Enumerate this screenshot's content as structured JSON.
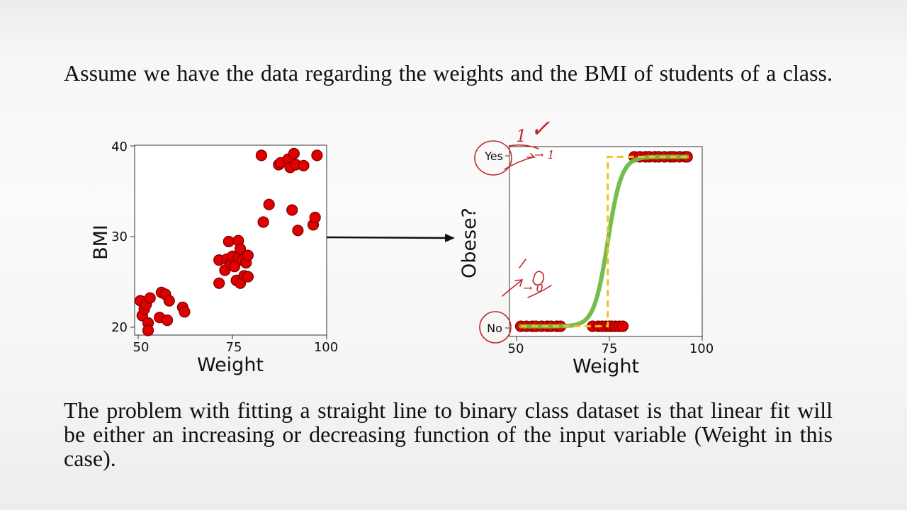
{
  "slide": {
    "intro": "Assume we have the data regarding the weights and the BMI of students of a class.",
    "outro": "The problem with fitting a straight line to binary class dataset is that linear fit will be either an increasing or decreasing function of the input variable (Weight in this case).",
    "handwriting": [
      "1",
      "✓",
      "→ 1",
      "→ 0"
    ]
  },
  "chart_data": [
    {
      "type": "scatter",
      "title": "",
      "xlabel": "Weight",
      "ylabel": "BMI",
      "xlim": [
        49,
        99
      ],
      "ylim": [
        19.5,
        40
      ],
      "xticks": [
        "50",
        "75",
        "100"
      ],
      "yticks": [
        "20",
        "30",
        "40"
      ],
      "color": "#e00000",
      "points": [
        [
          50.5,
          23.2
        ],
        [
          51,
          21.6
        ],
        [
          51.5,
          22.3
        ],
        [
          52.5,
          20.8
        ],
        [
          52,
          22.8
        ],
        [
          53,
          23.5
        ],
        [
          52.5,
          20
        ],
        [
          55.5,
          21.4
        ],
        [
          56,
          24.1
        ],
        [
          57,
          23.9
        ],
        [
          57.5,
          21.1
        ],
        [
          58,
          23.2
        ],
        [
          61.5,
          22.5
        ],
        [
          62,
          22
        ],
        [
          71,
          25.1
        ],
        [
          71,
          27.6
        ],
        [
          72.5,
          26.5
        ],
        [
          73,
          27.7
        ],
        [
          73.5,
          29.6
        ],
        [
          74,
          27.2
        ],
        [
          74.5,
          28
        ],
        [
          75,
          26.9
        ],
        [
          75.5,
          25.4
        ],
        [
          76,
          27.9
        ],
        [
          76,
          29.7
        ],
        [
          76.5,
          25.1
        ],
        [
          76.5,
          28.8
        ],
        [
          77,
          27.6
        ],
        [
          77.5,
          25.9
        ],
        [
          78,
          27.3
        ],
        [
          78.5,
          28.1
        ],
        [
          78.5,
          25.8
        ],
        [
          82,
          38.9
        ],
        [
          82.5,
          31.7
        ],
        [
          84,
          33.6
        ],
        [
          86.5,
          37.9
        ],
        [
          87,
          38.1
        ],
        [
          89,
          38.5
        ],
        [
          89.5,
          37.6
        ],
        [
          90,
          33
        ],
        [
          90.5,
          39.1
        ],
        [
          91,
          37.9
        ],
        [
          91.5,
          30.8
        ],
        [
          93,
          37.8
        ],
        [
          95.5,
          31.4
        ],
        [
          96,
          32.2
        ],
        [
          96.5,
          38.9
        ]
      ]
    },
    {
      "type": "scatter",
      "title": "",
      "xlabel": "Weight",
      "ylabel": "Obese?",
      "xlim": [
        49,
        100
      ],
      "ylim": [
        -0.06,
        1.06
      ],
      "xticks": [
        "50",
        "75",
        "100"
      ],
      "ycategories": [
        "No",
        "Yes"
      ],
      "series": [
        {
          "color": "#e00000",
          "points": [
            [
              52,
              0
            ],
            [
              53.5,
              0
            ],
            [
              55,
              0
            ],
            [
              56,
              0
            ],
            [
              57.5,
              0
            ],
            [
              59,
              0
            ],
            [
              60,
              0
            ],
            [
              61.5,
              0
            ],
            [
              62.5,
              0
            ],
            [
              71,
              0
            ],
            [
              72.5,
              0
            ],
            [
              73.5,
              0
            ],
            [
              74.5,
              0
            ],
            [
              75.5,
              0
            ],
            [
              76,
              0
            ],
            [
              77,
              0
            ],
            [
              78,
              0
            ],
            [
              79,
              0
            ],
            [
              82,
              1
            ],
            [
              83.5,
              1
            ],
            [
              85,
              1
            ],
            [
              86,
              1
            ],
            [
              87.5,
              1
            ],
            [
              88.5,
              1
            ],
            [
              90,
              1
            ],
            [
              91.5,
              1
            ],
            [
              92.5,
              1
            ],
            [
              94,
              1
            ],
            [
              95.5,
              1
            ],
            [
              96,
              1
            ]
          ]
        },
        {
          "type": "line",
          "color": "#6dbb47",
          "curve": "logistic",
          "x": [
            52,
            96
          ],
          "midpoint": 75,
          "steepness": 0.55
        },
        {
          "type": "line",
          "color": "#f2c21a",
          "dash": true,
          "points": [
            [
              52,
              0
            ],
            [
              75,
              0
            ],
            [
              75,
              1
            ],
            [
              96,
              1
            ]
          ]
        }
      ]
    }
  ]
}
